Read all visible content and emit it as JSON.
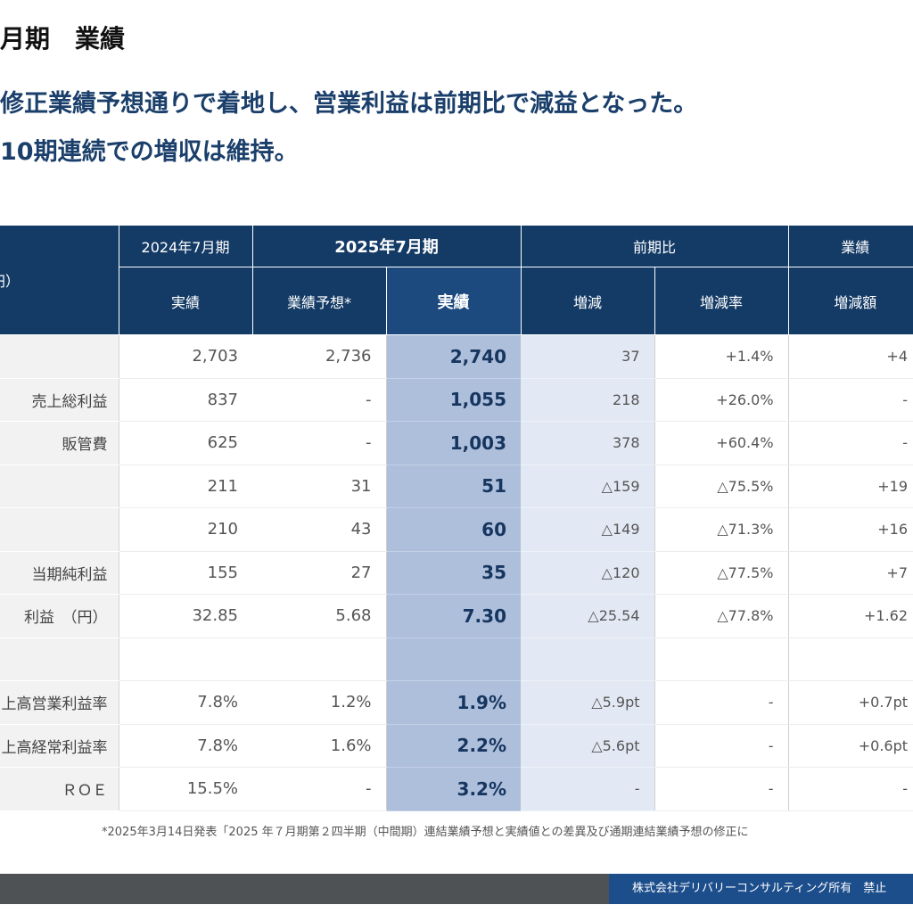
{
  "page": {
    "title": "月期　業績",
    "headline_line1": "修正業績予想通りで着地し、営業利益は前期比で減益となった。",
    "headline_line2": "10期連続での増収は維持。",
    "footnote": "*2025年3月14日発表「2025 年７月期第２四半期（中間期）連結業績予想と実績値との差異及び通期連結業績予想の修正に",
    "footer_copyright": "株式会社デリバリーコンサルティング所有　禁止"
  },
  "table": {
    "unit_label": "円）",
    "group_headers": {
      "prev_year": "2024年7月期",
      "current_year": "2025年7月期",
      "yoy": "前期比",
      "vs_forecast": "業績"
    },
    "sub_headers": {
      "prev_actual": "実績",
      "forecast": "業績予想*",
      "actual": "実績",
      "change": "増減",
      "change_rate": "増減率",
      "change_amount": "増減額"
    },
    "rows": [
      {
        "label": "",
        "prev": "2,703",
        "forecast": "2,736",
        "actual": "2,740",
        "change": "37",
        "rate": "+1.4%",
        "amount": "+4"
      },
      {
        "label": "売上総利益",
        "prev": "837",
        "forecast": "-",
        "actual": "1,055",
        "change": "218",
        "rate": "+26.0%",
        "amount": "-"
      },
      {
        "label": "販管費",
        "prev": "625",
        "forecast": "-",
        "actual": "1,003",
        "change": "378",
        "rate": "+60.4%",
        "amount": "-"
      },
      {
        "label": "",
        "prev": "211",
        "forecast": "31",
        "actual": "51",
        "change": "△159",
        "rate": "△75.5%",
        "amount": "+19"
      },
      {
        "label": "",
        "prev": "210",
        "forecast": "43",
        "actual": "60",
        "change": "△149",
        "rate": "△71.3%",
        "amount": "+16"
      },
      {
        "label": "当期純利益",
        "prev": "155",
        "forecast": "27",
        "actual": "35",
        "change": "△120",
        "rate": "△77.5%",
        "amount": "+7"
      },
      {
        "label": "利益　（円）",
        "prev": "32.85",
        "forecast": "5.68",
        "actual": "7.30",
        "change": "△25.54",
        "rate": "△77.8%",
        "amount": "+1.62"
      },
      {
        "label": "",
        "prev": "",
        "forecast": "",
        "actual": "",
        "change": "",
        "rate": "",
        "amount": ""
      },
      {
        "label": "上高営業利益率",
        "prev": "7.8%",
        "forecast": "1.2%",
        "actual": "1.9%",
        "change": "△5.9pt",
        "rate": "-",
        "amount": "+0.7pt"
      },
      {
        "label": "上高経常利益率",
        "prev": "7.8%",
        "forecast": "1.6%",
        "actual": "2.2%",
        "change": "△5.6pt",
        "rate": "-",
        "amount": "+0.6pt"
      },
      {
        "label": "ＲＯＥ",
        "prev": "15.5%",
        "forecast": "-",
        "actual": "3.2%",
        "change": "-",
        "rate": "-",
        "amount": "-"
      }
    ]
  }
}
